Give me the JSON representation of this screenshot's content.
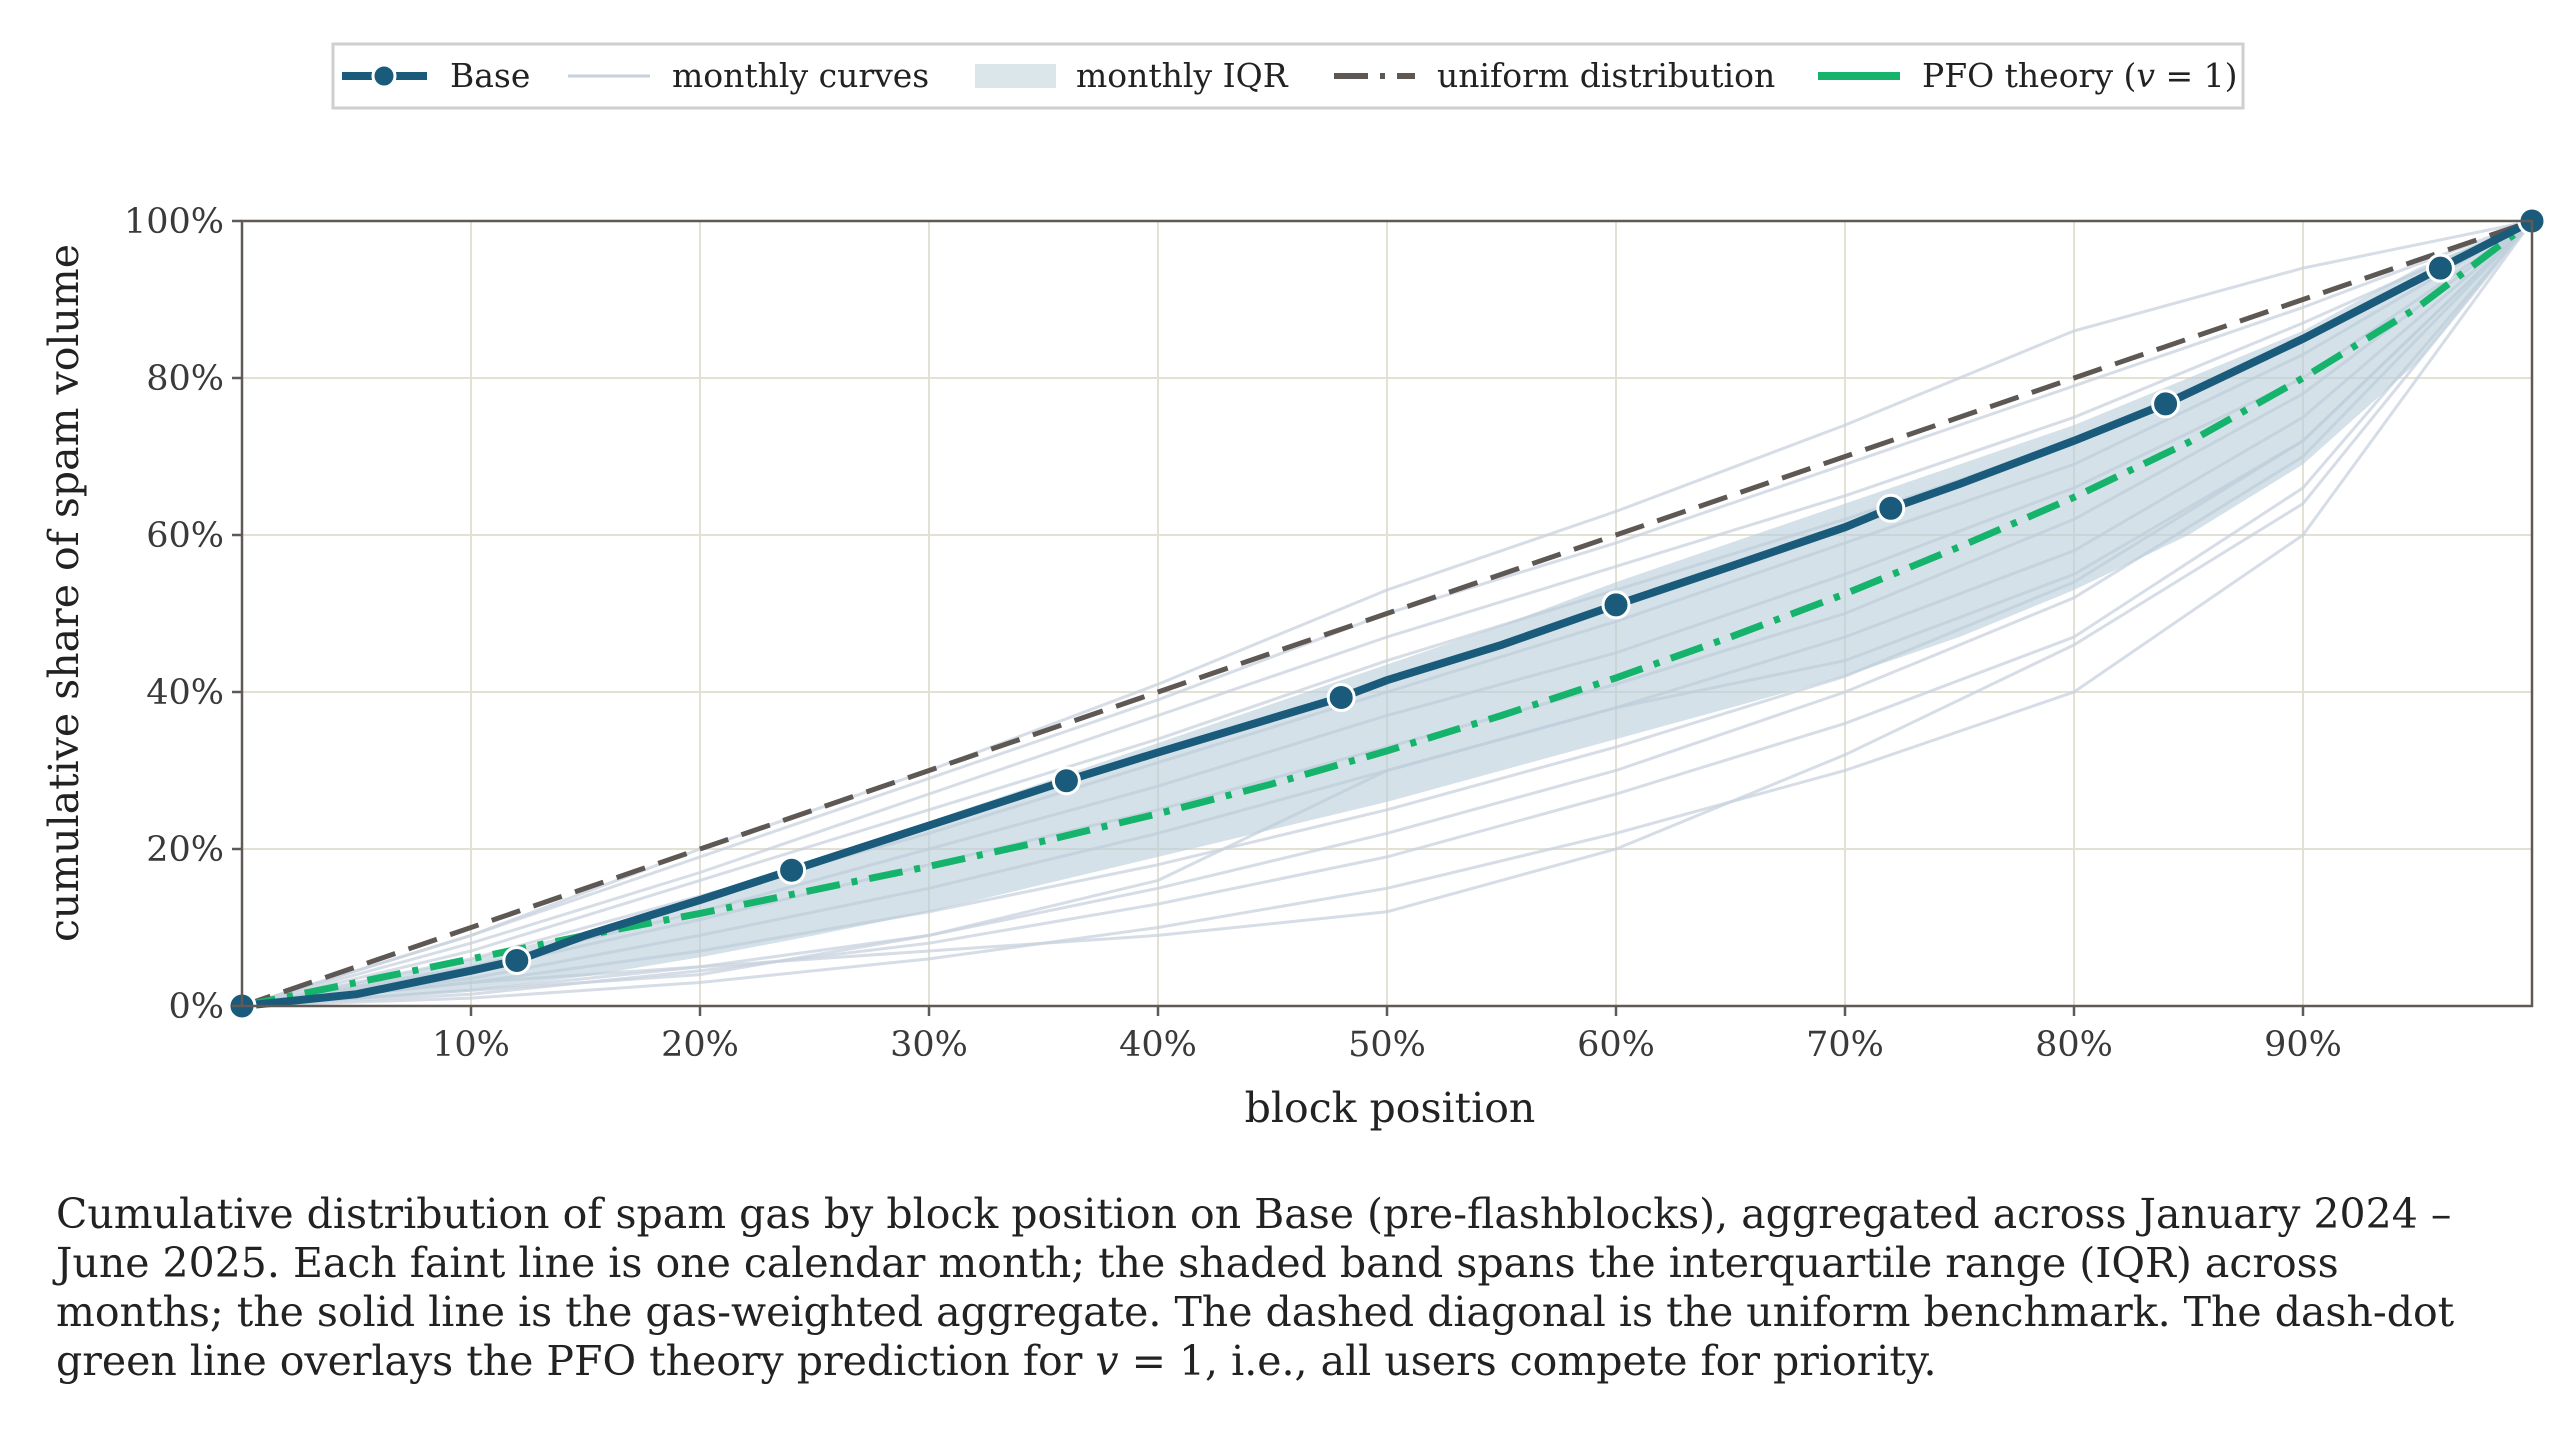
{
  "chart_data": {
    "type": "line",
    "xlabel": "block position",
    "ylabel": "cumulative share of spam volume",
    "xlim": [
      0,
      1
    ],
    "ylim": [
      0,
      1
    ],
    "x_ticks": [
      0.1,
      0.2,
      0.3,
      0.4,
      0.5,
      0.6,
      0.7,
      0.8,
      0.9
    ],
    "x_tick_labels": [
      "10%",
      "20%",
      "30%",
      "40%",
      "50%",
      "60%",
      "70%",
      "80%",
      "90%"
    ],
    "y_ticks": [
      0,
      0.2,
      0.4,
      0.6,
      0.8,
      1.0
    ],
    "y_tick_labels": [
      "0%",
      "20%",
      "40%",
      "60%",
      "80%",
      "100%"
    ],
    "grid": true,
    "legend_position": "top-center",
    "legend": {
      "base": "Base",
      "monthly": "monthly curves",
      "iqr": "monthly IQR",
      "uniform": "uniform distribution",
      "pfo_prefix": "PFO theory (",
      "pfo_var": "v",
      "pfo_suffix": " = 1)"
    },
    "colors": {
      "base": "#1a5a7a",
      "monthly": "#c8d2de",
      "iqr": "#b8cdd8",
      "uniform": "#5e5854",
      "pfo": "#15b36b",
      "grid": "#e3e0d4",
      "axis": "#5f5a55"
    },
    "series": [
      {
        "name": "Base",
        "x": [
          0,
          0.05,
          0.1,
          0.12,
          0.15,
          0.2,
          0.24,
          0.3,
          0.36,
          0.4,
          0.48,
          0.5,
          0.55,
          0.6,
          0.65,
          0.7,
          0.72,
          0.75,
          0.8,
          0.84,
          0.9,
          0.96,
          1.0
        ],
        "y": [
          0,
          0.015,
          0.045,
          0.058,
          0.09,
          0.135,
          0.173,
          0.23,
          0.287,
          0.323,
          0.393,
          0.415,
          0.46,
          0.511,
          0.56,
          0.61,
          0.634,
          0.665,
          0.72,
          0.767,
          0.85,
          0.94,
          1.0
        ],
        "markers_x": [
          0,
          0.12,
          0.24,
          0.36,
          0.48,
          0.6,
          0.72,
          0.84,
          0.96,
          1.0
        ],
        "markers_y": [
          0,
          0.058,
          0.173,
          0.287,
          0.393,
          0.511,
          0.634,
          0.767,
          0.94,
          1.0
        ]
      },
      {
        "name": "uniform distribution",
        "x": [
          0,
          1
        ],
        "y": [
          0,
          1
        ]
      },
      {
        "name": "PFO theory (v = 1)",
        "x": [
          0,
          0.05,
          0.1,
          0.15,
          0.2,
          0.25,
          0.3,
          0.35,
          0.4,
          0.45,
          0.5,
          0.55,
          0.6,
          0.65,
          0.7,
          0.75,
          0.8,
          0.85,
          0.9,
          0.95,
          1.0
        ],
        "y": [
          0,
          0.03,
          0.06,
          0.09,
          0.118,
          0.148,
          0.178,
          0.21,
          0.245,
          0.283,
          0.325,
          0.37,
          0.418,
          0.47,
          0.525,
          0.585,
          0.648,
          0.718,
          0.8,
          0.89,
          1.0
        ]
      }
    ],
    "iqr_band": {
      "x": [
        0,
        0.05,
        0.1,
        0.15,
        0.2,
        0.25,
        0.3,
        0.35,
        0.4,
        0.45,
        0.5,
        0.55,
        0.6,
        0.65,
        0.7,
        0.75,
        0.8,
        0.85,
        0.9,
        0.95,
        1.0
      ],
      "lower": [
        0,
        0.008,
        0.02,
        0.038,
        0.062,
        0.09,
        0.12,
        0.155,
        0.19,
        0.225,
        0.26,
        0.3,
        0.34,
        0.38,
        0.42,
        0.47,
        0.53,
        0.6,
        0.69,
        0.82,
        1.0
      ],
      "upper": [
        0,
        0.03,
        0.06,
        0.095,
        0.14,
        0.185,
        0.235,
        0.285,
        0.335,
        0.385,
        0.435,
        0.485,
        0.54,
        0.59,
        0.64,
        0.69,
        0.74,
        0.8,
        0.86,
        0.94,
        1.0
      ]
    },
    "monthly_curves": [
      {
        "x": [
          0,
          0.1,
          0.2,
          0.3,
          0.4,
          0.5,
          0.6,
          0.7,
          0.8,
          0.9,
          1.0
        ],
        "y": [
          0,
          0.01,
          0.03,
          0.06,
          0.1,
          0.15,
          0.22,
          0.3,
          0.4,
          0.6,
          1.0
        ]
      },
      {
        "x": [
          0,
          0.1,
          0.2,
          0.3,
          0.4,
          0.5,
          0.6,
          0.7,
          0.8,
          0.9,
          1.0
        ],
        "y": [
          0,
          0.015,
          0.045,
          0.08,
          0.13,
          0.19,
          0.27,
          0.36,
          0.47,
          0.66,
          1.0
        ]
      },
      {
        "x": [
          0,
          0.1,
          0.2,
          0.3,
          0.4,
          0.5,
          0.6,
          0.7,
          0.8,
          0.9,
          1.0
        ],
        "y": [
          0,
          0.02,
          0.05,
          0.09,
          0.15,
          0.22,
          0.3,
          0.4,
          0.52,
          0.7,
          1.0
        ]
      },
      {
        "x": [
          0,
          0.1,
          0.2,
          0.3,
          0.4,
          0.5,
          0.6,
          0.7,
          0.8,
          0.9,
          1.0
        ],
        "y": [
          0,
          0.03,
          0.07,
          0.12,
          0.18,
          0.25,
          0.33,
          0.42,
          0.54,
          0.72,
          1.0
        ]
      },
      {
        "x": [
          0,
          0.1,
          0.2,
          0.3,
          0.4,
          0.5,
          0.6,
          0.7,
          0.8,
          0.9,
          1.0
        ],
        "y": [
          0,
          0.035,
          0.09,
          0.15,
          0.22,
          0.3,
          0.38,
          0.47,
          0.58,
          0.75,
          1.0
        ]
      },
      {
        "x": [
          0,
          0.1,
          0.2,
          0.3,
          0.4,
          0.5,
          0.6,
          0.7,
          0.8,
          0.9,
          1.0
        ],
        "y": [
          0,
          0.045,
          0.11,
          0.18,
          0.25,
          0.33,
          0.41,
          0.5,
          0.62,
          0.78,
          1.0
        ]
      },
      {
        "x": [
          0,
          0.1,
          0.2,
          0.3,
          0.4,
          0.5,
          0.6,
          0.7,
          0.8,
          0.9,
          1.0
        ],
        "y": [
          0,
          0.05,
          0.12,
          0.2,
          0.28,
          0.37,
          0.45,
          0.55,
          0.66,
          0.8,
          1.0
        ]
      },
      {
        "x": [
          0,
          0.1,
          0.2,
          0.3,
          0.4,
          0.5,
          0.6,
          0.7,
          0.8,
          0.9,
          1.0
        ],
        "y": [
          0,
          0.06,
          0.14,
          0.22,
          0.31,
          0.4,
          0.49,
          0.59,
          0.69,
          0.83,
          1.0
        ]
      },
      {
        "x": [
          0,
          0.1,
          0.2,
          0.3,
          0.4,
          0.5,
          0.6,
          0.7,
          0.8,
          0.9,
          1.0
        ],
        "y": [
          0,
          0.07,
          0.16,
          0.25,
          0.34,
          0.44,
          0.53,
          0.62,
          0.72,
          0.85,
          1.0
        ]
      },
      {
        "x": [
          0,
          0.1,
          0.2,
          0.3,
          0.4,
          0.5,
          0.6,
          0.7,
          0.8,
          0.9,
          1.0
        ],
        "y": [
          0,
          0.08,
          0.17,
          0.27,
          0.37,
          0.47,
          0.56,
          0.65,
          0.75,
          0.87,
          1.0
        ]
      },
      {
        "x": [
          0,
          0.1,
          0.2,
          0.3,
          0.4,
          0.5,
          0.6,
          0.7,
          0.8,
          0.9,
          1.0
        ],
        "y": [
          0,
          0.09,
          0.19,
          0.29,
          0.39,
          0.5,
          0.59,
          0.69,
          0.79,
          0.89,
          1.0
        ]
      },
      {
        "x": [
          0,
          0.1,
          0.2,
          0.3,
          0.4,
          0.5,
          0.6,
          0.7,
          0.8,
          0.9,
          1.0
        ],
        "y": [
          0,
          0.09,
          0.2,
          0.3,
          0.41,
          0.53,
          0.63,
          0.74,
          0.86,
          0.94,
          1.0
        ]
      },
      {
        "x": [
          0,
          0.1,
          0.2,
          0.3,
          0.4,
          0.5,
          0.6,
          0.7,
          0.8,
          0.9,
          1.0
        ],
        "y": [
          0,
          0.03,
          0.05,
          0.07,
          0.09,
          0.12,
          0.2,
          0.32,
          0.46,
          0.64,
          1.0
        ]
      },
      {
        "x": [
          0,
          0.1,
          0.2,
          0.3,
          0.4,
          0.5,
          0.6,
          0.7,
          0.8,
          0.9,
          1.0
        ],
        "y": [
          0,
          0.02,
          0.04,
          0.09,
          0.16,
          0.3,
          0.38,
          0.44,
          0.55,
          0.72,
          1.0
        ]
      }
    ]
  },
  "caption": {
    "part1": "Cumulative distribution of spam gas by block position on Base (pre-flashblocks), aggregated across January 2024 – June 2025. Each faint line is one calendar month; the shaded band spans the interquartile range (IQR) across months; the solid line is the gas-weighted aggregate. The dashed diagonal is the uniform benchmark. The dash-dot green line overlays the PFO theory prediction for ",
    "var": "v",
    "part2": " = 1",
    "part3": ", i.e., all users compete for priority."
  }
}
